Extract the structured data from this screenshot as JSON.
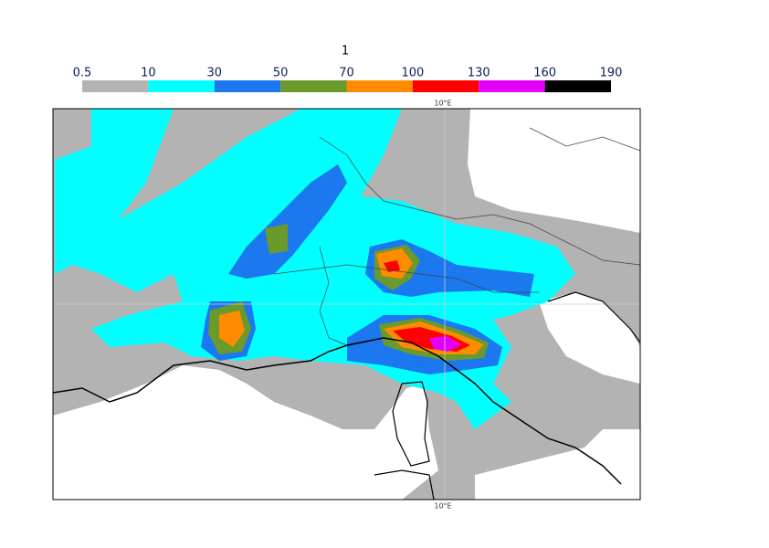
{
  "title": "1",
  "colorbar": {
    "levels": [
      0.5,
      10,
      30,
      50,
      70,
      100,
      130,
      160,
      190
    ],
    "colors": [
      "#b3b3b3",
      "#00ffff",
      "#1b78ee",
      "#6b9a2c",
      "#ff8c00",
      "#ff0000",
      "#e400ff",
      "#000000"
    ]
  },
  "map": {
    "meridian_labels": [
      "10°E",
      "10°E"
    ]
  }
}
